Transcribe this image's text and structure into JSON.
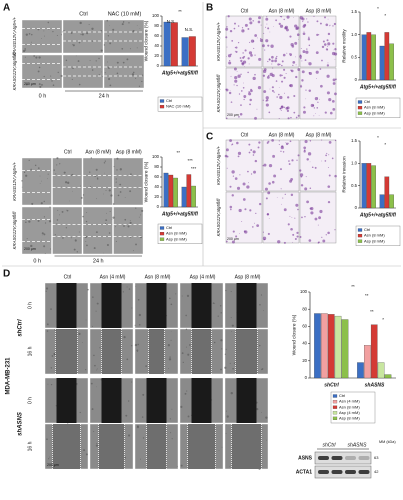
{
  "panels": {
    "A": {
      "label": "A",
      "columns": [
        "Ctrl",
        "NAC (10 mM)"
      ],
      "rows": [
        "KRASG12V;Atg5+/+",
        "KRASG12V;atg5fl/fl"
      ],
      "times": [
        "0 h",
        "24 h"
      ],
      "scale": "200 µm"
    },
    "A2": {
      "columns": [
        "Ctrl",
        "Asn (8 mM)",
        "Asp (8 mM)"
      ],
      "rows": [
        "KRASG12V;Atg5+/+",
        "KRASG12V;atg5fl/fl"
      ],
      "times": [
        "0 h",
        "24 h"
      ],
      "scale": "200 µm"
    },
    "B": {
      "label": "B",
      "columns": [
        "Ctrl",
        "Asn (8 mM)",
        "Asp (8 mM)"
      ],
      "rows": [
        "KRASG12V;Atg5+/+",
        "KRASG12V;atg5fl/fl"
      ],
      "scale": "200 µm"
    },
    "C": {
      "label": "C",
      "columns": [
        "Ctrl",
        "Asn (8 mM)",
        "Asp (8 mM)"
      ],
      "rows": [
        "KRASG12V;Atg5+/+",
        "KRASG12V;atg5fl/fl"
      ],
      "scale": "200 µm"
    },
    "D": {
      "label": "D",
      "cell_line": "MDA-MB-231",
      "columns": [
        "Ctrl",
        "Asn (4 mM)",
        "Asn (8 mM)",
        "Asp (4 mM)",
        "Asp (8 mM)"
      ],
      "groups": [
        "shCtrl",
        "shASNS"
      ],
      "times": [
        "0 h",
        "16 h"
      ],
      "scale": "200 µm"
    },
    "blot": {
      "lanes": [
        "shCtrl",
        "shASNS"
      ],
      "bands": [
        "ASNS",
        "ACTA1"
      ],
      "mm_title": "MM (kDa)",
      "mm": [
        "63",
        "42"
      ]
    }
  },
  "chart_data": [
    {
      "type": "bar",
      "y_label": "Wound closure (%)",
      "categories": [
        "Atg5+/+",
        "atg5fl/fl"
      ],
      "series": [
        {
          "name": "Ctrl",
          "color": "#3b6fc4",
          "values": [
            88,
            57
          ]
        },
        {
          "name": "NAC (10 mM)",
          "color": "#d43a35",
          "values": [
            87,
            59
          ]
        }
      ],
      "ylim": [
        0,
        100
      ],
      "yticks": [
        0,
        20,
        40,
        60,
        80,
        100
      ],
      "annotations": [
        "**",
        "N.S.",
        "N.S."
      ]
    },
    {
      "type": "bar",
      "y_label": "Wound closure (%)",
      "categories": [
        "Atg5+/+",
        "atg5fl/fl"
      ],
      "series": [
        {
          "name": "Ctrl",
          "color": "#3b6fc4",
          "values": [
            68,
            40
          ]
        },
        {
          "name": "Asn (8 mM)",
          "color": "#d43a35",
          "values": [
            64,
            65
          ]
        },
        {
          "name": "Asp (8 mM)",
          "color": "#8cc04a",
          "values": [
            58,
            42
          ]
        }
      ],
      "ylim": [
        0,
        100
      ],
      "yticks": [
        0,
        20,
        40,
        60,
        80,
        100
      ],
      "annotations": [
        "**",
        "***",
        "***"
      ]
    },
    {
      "type": "bar",
      "y_label": "Relative motility",
      "categories": [
        "Atg5+/+",
        "atg5fl/fl"
      ],
      "series": [
        {
          "name": "Ctrl",
          "color": "#3b6fc4",
          "values": [
            1.0,
            0.75
          ]
        },
        {
          "name": "Asn (8 mM)",
          "color": "#d43a35",
          "values": [
            1.05,
            1.05
          ]
        },
        {
          "name": "Asp (8 mM)",
          "color": "#8cc04a",
          "values": [
            1.0,
            0.8
          ]
        }
      ],
      "ylim": [
        0,
        1.5
      ],
      "yticks": [
        0,
        0.5,
        {
          "value": 1,
          "label": "1.0"
        },
        1.5
      ],
      "annotations": [
        "*",
        "*"
      ]
    },
    {
      "type": "bar",
      "y_label": "Relative invasion",
      "categories": [
        "Atg5+/+",
        "atg5fl/fl"
      ],
      "series": [
        {
          "name": "Ctrl",
          "color": "#3b6fc4",
          "values": [
            1.0,
            0.3
          ]
        },
        {
          "name": "Asn (8 mM)",
          "color": "#d43a35",
          "values": [
            1.0,
            0.7
          ]
        },
        {
          "name": "Asp (8 mM)",
          "color": "#8cc04a",
          "values": [
            0.95,
            0.3
          ]
        }
      ],
      "ylim": [
        0,
        1.5
      ],
      "yticks": [
        0,
        0.5,
        {
          "value": 1,
          "label": "1.0"
        },
        1.5
      ],
      "annotations": [
        "*",
        "*"
      ]
    },
    {
      "type": "bar",
      "y_label": "Wound closure (%)",
      "categories": [
        "shCtrl",
        "shASNS"
      ],
      "series": [
        {
          "name": "Ctrl",
          "color": "#3b6fc4",
          "values": [
            75,
            18
          ]
        },
        {
          "name": "Asn (4 mM)",
          "color": "#f2a0a0",
          "values": [
            75,
            38
          ]
        },
        {
          "name": "Asn (8 mM)",
          "color": "#d43a35",
          "values": [
            74,
            62
          ]
        },
        {
          "name": "Asp (4 mM)",
          "color": "#c8e6a0",
          "values": [
            72,
            18
          ]
        },
        {
          "name": "Asp (8 mM)",
          "color": "#8cc04a",
          "values": [
            68,
            4
          ]
        }
      ],
      "ylim": [
        0,
        100
      ],
      "yticks": [
        0,
        20,
        40,
        60,
        80,
        100
      ],
      "annotations": [
        "**",
        "**",
        "**",
        "*"
      ]
    }
  ]
}
